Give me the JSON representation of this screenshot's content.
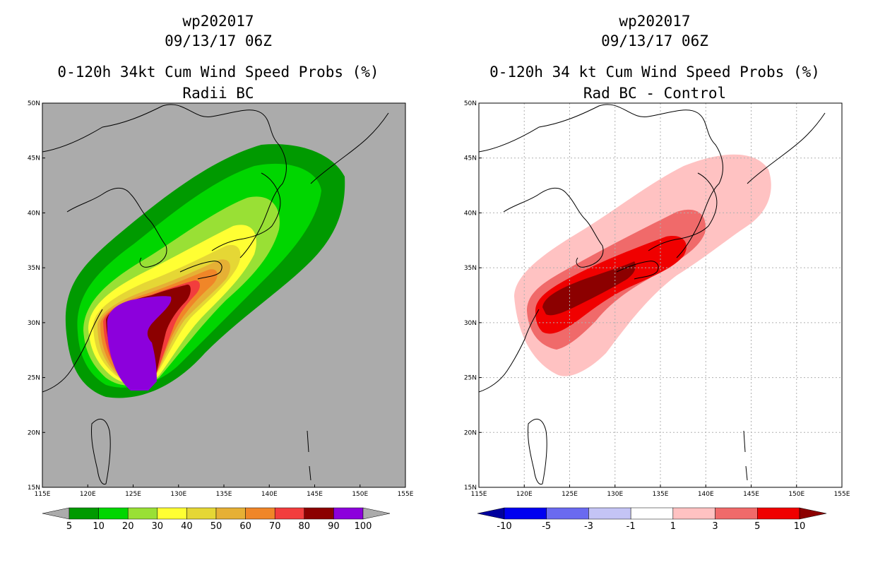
{
  "panels": [
    {
      "storm_id": "wp202017",
      "datetime": "09/13/17 06Z",
      "product": "0-120h 34kt Cum Wind Speed Probs (%)",
      "subtitle": "Radii BC",
      "colorbar": {
        "labels": [
          "5",
          "10",
          "20",
          "30",
          "40",
          "50",
          "60",
          "70",
          "80",
          "90",
          "100"
        ],
        "colors": [
          "#ababab",
          "#009a00",
          "#00d600",
          "#99e035",
          "#ffff33",
          "#e5d735",
          "#e6b035",
          "#f08628",
          "#f23d3d",
          "#8c0000",
          "#8c00dc",
          "#ababab"
        ]
      }
    },
    {
      "storm_id": "wp202017",
      "datetime": "09/13/17 06Z",
      "product": "0-120h 34 kt Cum Wind Speed Probs (%)",
      "subtitle": "Rad BC - Control",
      "colorbar": {
        "labels": [
          "-10",
          "-5",
          "-3",
          "-1",
          "1",
          "3",
          "5",
          "10"
        ],
        "colors": [
          "#00009e",
          "#0000f0",
          "#6a6af0",
          "#c4c4f5",
          "#ffffff",
          "#ffc2c2",
          "#f06a6a",
          "#f00000",
          "#8c0000"
        ]
      }
    }
  ],
  "axes": {
    "lon_labels": [
      "115E",
      "120E",
      "125E",
      "130E",
      "135E",
      "140E",
      "145E",
      "150E",
      "155E"
    ],
    "lat_labels": [
      "50N",
      "45N",
      "40N",
      "35N",
      "30N",
      "25N",
      "20N",
      "15N"
    ]
  }
}
